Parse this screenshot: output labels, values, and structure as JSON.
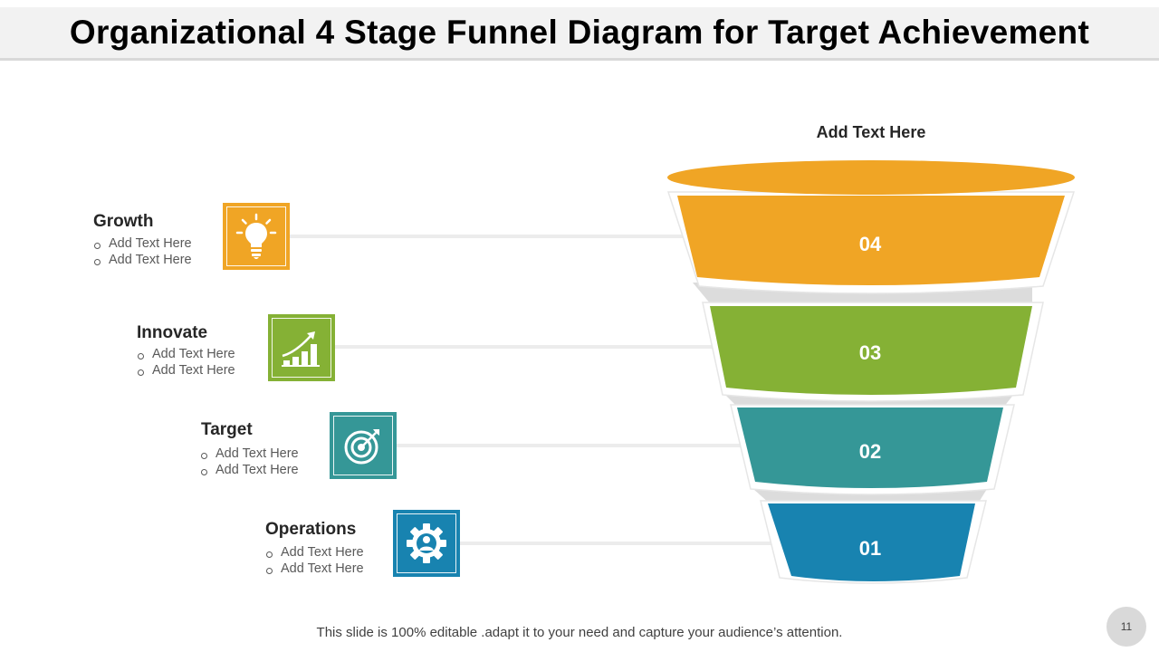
{
  "title": "Organizational 4 Stage Funnel Diagram for Target Achievement",
  "funnel": {
    "top_label": "Add Text Here",
    "levels": [
      {
        "number": "04",
        "color": "#f0a525"
      },
      {
        "number": "03",
        "color": "#85b135"
      },
      {
        "number": "02",
        "color": "#359797"
      },
      {
        "number": "01",
        "color": "#1883b0"
      }
    ]
  },
  "stages": [
    {
      "label": "Growth",
      "bullets": [
        "Add Text Here",
        "Add Text Here"
      ],
      "icon": "lightbulb-icon",
      "color": "#f0a525"
    },
    {
      "label": "Innovate",
      "bullets": [
        "Add Text Here",
        "Add Text Here"
      ],
      "icon": "growth-chart-icon",
      "color": "#85b135"
    },
    {
      "label": "Target",
      "bullets": [
        "Add Text Here",
        "Add Text Here"
      ],
      "icon": "target-icon",
      "color": "#359797"
    },
    {
      "label": "Operations",
      "bullets": [
        "Add Text Here",
        "Add Text Here"
      ],
      "icon": "gear-icon",
      "color": "#1883b0"
    }
  ],
  "footer": "This slide is 100% editable .adapt it to your need and capture your audience’s attention.",
  "page_number": "11"
}
